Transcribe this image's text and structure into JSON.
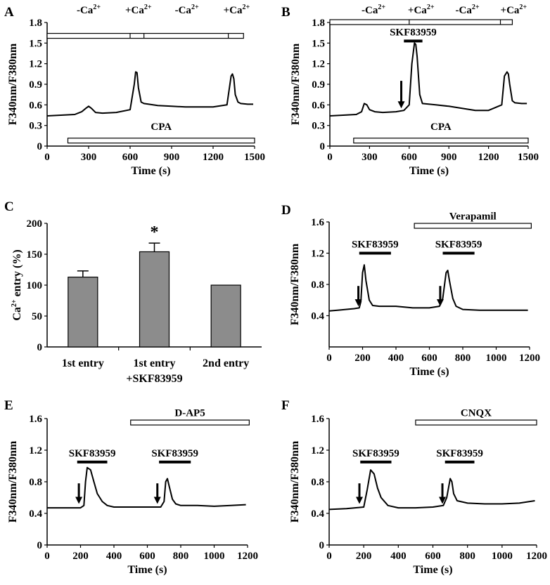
{
  "chart_data": [
    {
      "panel": "A",
      "type": "line",
      "xlabel": "Time (s)",
      "ylabel": "F340nm/F380nm",
      "xlim": [
        0,
        1500
      ],
      "ylim": [
        0,
        1.8
      ],
      "xticks": [
        "0",
        "300",
        "600",
        "900",
        "1200",
        "1500"
      ],
      "yticks": [
        "0",
        "0.3",
        "0.6",
        "0.9",
        "1.2",
        "1.5",
        "1.8"
      ],
      "trace": {
        "x": [
          0,
          100,
          200,
          250,
          280,
          300,
          320,
          350,
          400,
          500,
          600,
          630,
          640,
          650,
          660,
          680,
          700,
          800,
          900,
          1000,
          1100,
          1200,
          1300,
          1330,
          1340,
          1350,
          1360,
          1380,
          1400,
          1450,
          1490
        ],
        "y": [
          0.44,
          0.45,
          0.46,
          0.5,
          0.55,
          0.58,
          0.55,
          0.49,
          0.48,
          0.49,
          0.53,
          0.9,
          1.08,
          1.07,
          0.85,
          0.64,
          0.62,
          0.59,
          0.58,
          0.57,
          0.57,
          0.57,
          0.6,
          1.02,
          1.05,
          0.98,
          0.75,
          0.64,
          0.62,
          0.61,
          0.61
        ]
      },
      "annotations": [
        {
          "text": "-Ca",
          "superscript": "2+",
          "x": 300
        },
        {
          "text": "+Ca",
          "superscript": "2+",
          "x": 660
        },
        {
          "text": "-Ca",
          "superscript": "2+",
          "x": 1010
        },
        {
          "text": "+Ca",
          "superscript": "2+",
          "x": 1370
        }
      ],
      "ca_bar": {
        "start": 0,
        "end": 1420,
        "dividers": [
          600,
          700,
          1310
        ],
        "y": 1.6
      },
      "drug_bars": [
        {
          "label": "CPA",
          "start": 150,
          "end": 1500,
          "y": 0.08,
          "filled": false
        }
      ],
      "arrows": []
    },
    {
      "panel": "B",
      "type": "line",
      "xlabel": "Time (s)",
      "ylabel": "F340nm/F380nm",
      "xlim": [
        0,
        1500
      ],
      "ylim": [
        0,
        1.8
      ],
      "xticks": [
        "0",
        "300",
        "600",
        "900",
        "1200",
        "1500"
      ],
      "yticks": [
        "0",
        "0.3",
        "0.6",
        "0.9",
        "1.2",
        "1.5",
        "1.8"
      ],
      "trace": {
        "x": [
          0,
          100,
          200,
          240,
          260,
          280,
          300,
          340,
          400,
          500,
          560,
          600,
          620,
          640,
          650,
          660,
          680,
          700,
          800,
          900,
          1000,
          1100,
          1200,
          1300,
          1320,
          1340,
          1350,
          1360,
          1380,
          1400,
          1450,
          1490
        ],
        "y": [
          0.44,
          0.45,
          0.46,
          0.5,
          0.62,
          0.6,
          0.53,
          0.5,
          0.49,
          0.5,
          0.52,
          0.6,
          1.2,
          1.5,
          1.48,
          1.3,
          0.75,
          0.62,
          0.6,
          0.58,
          0.55,
          0.52,
          0.52,
          0.6,
          1.02,
          1.08,
          1.05,
          0.9,
          0.66,
          0.63,
          0.62,
          0.62
        ]
      },
      "annotations": [
        {
          "text": "-Ca",
          "superscript": "2+",
          "x": 330
        },
        {
          "text": "+Ca",
          "superscript": "2+",
          "x": 690
        },
        {
          "text": "-Ca",
          "superscript": "2+",
          "x": 1040
        },
        {
          "text": "+Ca",
          "superscript": "2+",
          "x": 1390
        }
      ],
      "ca_bar": {
        "start": 0,
        "end": 1380,
        "dividers": [
          600,
          1290
        ],
        "y": 1.8
      },
      "drug_bars": [
        {
          "label": "SKF83959",
          "start": 560,
          "end": 700,
          "y": 1.53,
          "filled": true
        },
        {
          "label": "CPA",
          "start": 180,
          "end": 1500,
          "y": 0.08,
          "filled": false
        }
      ],
      "arrows": [
        {
          "x": 540,
          "y_top": 0.95,
          "y_bottom": 0.55
        }
      ]
    },
    {
      "panel": "C",
      "type": "bar",
      "xlabel": "",
      "ylabel": "Ca entry (%)",
      "ylabel_superscript": "2+",
      "ylim": [
        0,
        200
      ],
      "yticks": [
        "0",
        "50",
        "100",
        "150",
        "200"
      ],
      "categories": [
        "1st entry",
        "1st entry +SKF83959",
        "2nd entry"
      ],
      "values": [
        113,
        154,
        100
      ],
      "errors": [
        10,
        14,
        0
      ],
      "significance": [
        "",
        "*",
        ""
      ]
    },
    {
      "panel": "D",
      "type": "line",
      "xlabel": "Time (s)",
      "ylabel": "F340nm/F380nm",
      "xlim": [
        0,
        1200
      ],
      "ylim": [
        0,
        1.6
      ],
      "xticks": [
        "0",
        "200",
        "400",
        "600",
        "800",
        "1000",
        "1200"
      ],
      "yticks": [
        "0.4",
        "0.8",
        "1.2",
        "1.6"
      ],
      "trace": {
        "x": [
          0,
          50,
          100,
          150,
          180,
          190,
          200,
          210,
          220,
          240,
          260,
          300,
          400,
          500,
          600,
          660,
          680,
          700,
          710,
          720,
          740,
          760,
          800,
          900,
          1000,
          1100,
          1190
        ],
        "y": [
          0.46,
          0.47,
          0.48,
          0.49,
          0.5,
          0.58,
          0.95,
          1.05,
          0.85,
          0.6,
          0.53,
          0.52,
          0.52,
          0.5,
          0.5,
          0.52,
          0.62,
          0.95,
          0.98,
          0.85,
          0.62,
          0.52,
          0.48,
          0.47,
          0.47,
          0.47,
          0.47
        ]
      },
      "annotations": [],
      "ca_bar": null,
      "drug_bars": [
        {
          "label": "Verapamil",
          "start": 510,
          "end": 1210,
          "y": 1.55,
          "filled": false
        },
        {
          "label": "SKF83959",
          "start": 180,
          "end": 370,
          "y": 1.2,
          "filled": true
        },
        {
          "label": "SKF83959",
          "start": 680,
          "end": 870,
          "y": 1.2,
          "filled": true
        }
      ],
      "arrows": [
        {
          "x": 175,
          "y_top": 0.78,
          "y_bottom": 0.52
        },
        {
          "x": 665,
          "y_top": 0.78,
          "y_bottom": 0.52
        }
      ]
    },
    {
      "panel": "E",
      "type": "line",
      "xlabel": "Time (s)",
      "ylabel": "F340nm/F380nm",
      "xlim": [
        0,
        1200
      ],
      "ylim": [
        0,
        1.6
      ],
      "xticks": [
        "0",
        "200",
        "400",
        "600",
        "800",
        "1000",
        "1200"
      ],
      "yticks": [
        "0",
        "0.4",
        "0.8",
        "1.2",
        "1.6"
      ],
      "trace": {
        "x": [
          0,
          100,
          200,
          220,
          230,
          240,
          260,
          280,
          300,
          330,
          360,
          400,
          500,
          600,
          680,
          700,
          710,
          720,
          730,
          750,
          770,
          800,
          900,
          1000,
          1100,
          1190
        ],
        "y": [
          0.47,
          0.47,
          0.47,
          0.5,
          0.8,
          0.98,
          0.95,
          0.8,
          0.65,
          0.55,
          0.5,
          0.48,
          0.48,
          0.48,
          0.48,
          0.55,
          0.8,
          0.84,
          0.75,
          0.58,
          0.52,
          0.5,
          0.5,
          0.49,
          0.5,
          0.51
        ]
      },
      "annotations": [],
      "ca_bar": null,
      "drug_bars": [
        {
          "label": "D-AP5",
          "start": 500,
          "end": 1210,
          "y": 1.55,
          "filled": false
        },
        {
          "label": "SKF83959",
          "start": 180,
          "end": 360,
          "y": 1.05,
          "filled": true
        },
        {
          "label": "SKF83959",
          "start": 670,
          "end": 860,
          "y": 1.05,
          "filled": true
        }
      ],
      "arrows": [
        {
          "x": 190,
          "y_top": 0.78,
          "y_bottom": 0.52
        },
        {
          "x": 660,
          "y_top": 0.78,
          "y_bottom": 0.52
        }
      ]
    },
    {
      "panel": "F",
      "type": "line",
      "xlabel": "Time (s)",
      "ylabel": "F340nm/F380nm",
      "xlim": [
        0,
        1200
      ],
      "ylim": [
        0,
        1.6
      ],
      "xticks": [
        "0",
        "200",
        "400",
        "600",
        "800",
        "1000",
        "1200"
      ],
      "yticks": [
        "0",
        "0.4",
        "0.8",
        "1.2",
        "1.6"
      ],
      "trace": {
        "x": [
          0,
          100,
          150,
          200,
          220,
          240,
          260,
          280,
          300,
          340,
          400,
          500,
          600,
          660,
          680,
          700,
          710,
          720,
          740,
          800,
          900,
          1000,
          1100,
          1190
        ],
        "y": [
          0.45,
          0.46,
          0.47,
          0.48,
          0.7,
          0.95,
          0.9,
          0.72,
          0.6,
          0.5,
          0.47,
          0.47,
          0.48,
          0.5,
          0.6,
          0.84,
          0.8,
          0.65,
          0.56,
          0.53,
          0.52,
          0.52,
          0.53,
          0.56
        ]
      },
      "annotations": [],
      "ca_bar": null,
      "drug_bars": [
        {
          "label": "CNQX",
          "start": 500,
          "end": 1200,
          "y": 1.55,
          "filled": false
        },
        {
          "label": "SKF83959",
          "start": 180,
          "end": 360,
          "y": 1.05,
          "filled": true
        },
        {
          "label": "SKF83959",
          "start": 670,
          "end": 840,
          "y": 1.05,
          "filled": true
        }
      ],
      "arrows": [
        {
          "x": 175,
          "y_top": 0.78,
          "y_bottom": 0.52
        },
        {
          "x": 655,
          "y_top": 0.78,
          "y_bottom": 0.52
        }
      ]
    }
  ]
}
